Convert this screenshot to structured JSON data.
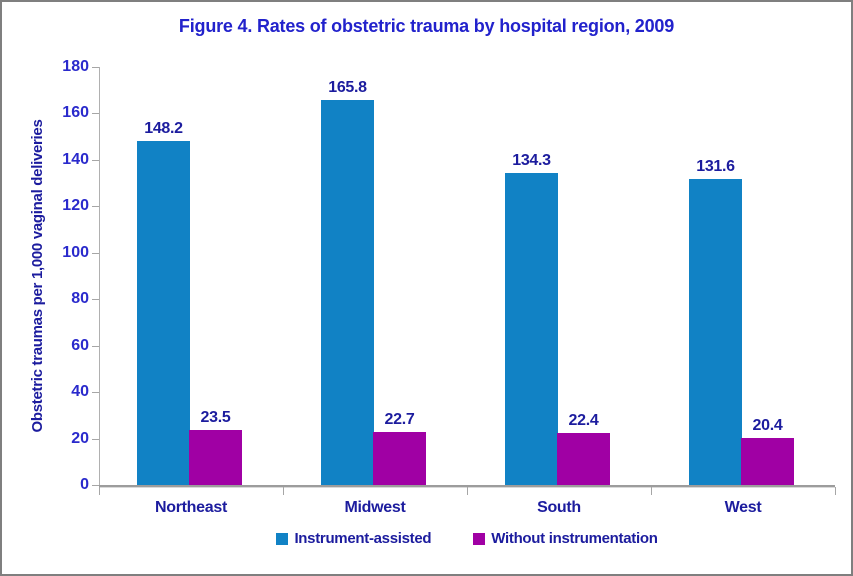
{
  "title": {
    "text": "Figure 4.  Rates of obstetric trauma by  hospital region, 2009",
    "color": "#2222cc"
  },
  "chart_data": {
    "type": "bar",
    "title": "Figure 4.  Rates of obstetric trauma by  hospital region, 2009",
    "categories": [
      "Northeast",
      "Midwest",
      "South",
      "West"
    ],
    "series": [
      {
        "name": "Instrument-assisted",
        "color": "#1182c5",
        "values": [
          148.2,
          165.8,
          134.3,
          131.6
        ]
      },
      {
        "name": "Without instrumentation",
        "color": "#a000a4",
        "values": [
          23.5,
          22.7,
          22.4,
          20.4
        ]
      }
    ],
    "xlabel": "",
    "ylabel": "Obstetric traumas per 1,000 vaginal deliveries",
    "ylim": [
      0,
      180
    ],
    "ytick_step": 20,
    "grid": false,
    "legend_position": "bottom",
    "data_labels": true
  },
  "colors": {
    "title_text": "#2222cc",
    "axis_tick_text": "#2a2acc",
    "label_text": "#1c1c9e",
    "series_blue": "#1182c5",
    "series_magenta": "#a000a4",
    "axis_line": "#a6a6a6",
    "frame_border": "#7f7f7f"
  }
}
